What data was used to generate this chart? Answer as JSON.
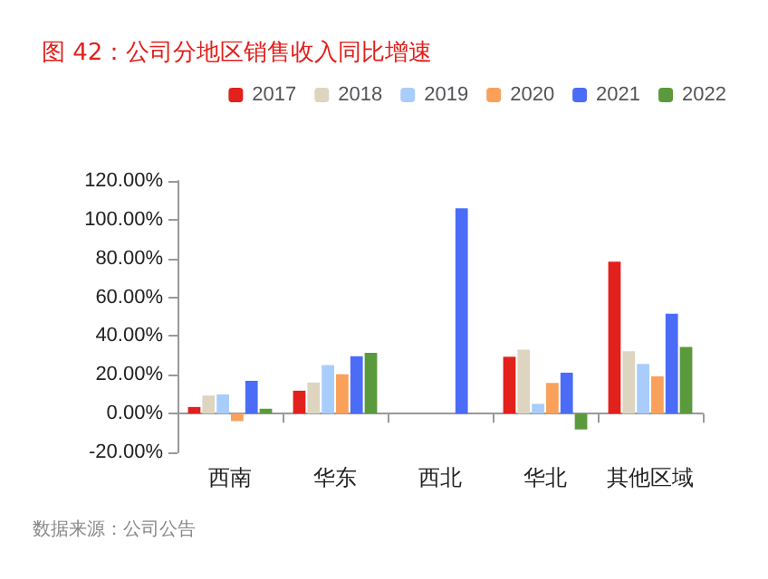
{
  "chart_data": {
    "type": "bar",
    "title": "图 42：公司分地区销售收入同比增速",
    "categories": [
      "西南",
      "华东",
      "西北",
      "华北",
      "其他区域"
    ],
    "series": [
      {
        "name": "2017",
        "color": "#e2201c",
        "values": [
          3.4,
          11.8,
          null,
          29.3,
          78.3
        ]
      },
      {
        "name": "2018",
        "color": "#ddd5c0",
        "values": [
          9.3,
          16,
          null,
          33,
          32.1
        ]
      },
      {
        "name": "2019",
        "color": "#a9cdfa",
        "values": [
          9.9,
          25,
          null,
          5,
          25.6
        ]
      },
      {
        "name": "2020",
        "color": "#f9a15a",
        "values": [
          -3.9,
          20.3,
          null,
          15.8,
          19.2
        ]
      },
      {
        "name": "2021",
        "color": "#4a6cf7",
        "values": [
          16.9,
          29.6,
          105.9,
          21.1,
          51.5
        ]
      },
      {
        "name": "2022",
        "color": "#5b9a3c",
        "values": [
          2.5,
          31.3,
          0,
          -8.2,
          34.4
        ]
      }
    ],
    "ylim": [
      -20,
      120
    ],
    "yticks": [
      {
        "value": -20,
        "label": "-20.00%"
      },
      {
        "value": 0,
        "label": "0.00%"
      },
      {
        "value": 20,
        "label": "20.00%"
      },
      {
        "value": 40,
        "label": "40.00%"
      },
      {
        "value": 60,
        "label": "60.00%"
      },
      {
        "value": 80,
        "label": "80.00%"
      },
      {
        "value": 100,
        "label": "100.00%"
      },
      {
        "value": 120,
        "label": "120.00%"
      }
    ],
    "grid": false,
    "legend": "top right",
    "annotations": [
      "数据来源：公司公告"
    ]
  }
}
